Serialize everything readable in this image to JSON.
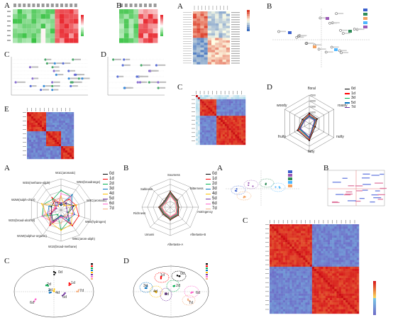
{
  "figure_labels": {
    "top_left": [
      "A",
      "B",
      "C",
      "D",
      "E"
    ],
    "top_right": [
      "A",
      "B",
      "C",
      "D"
    ],
    "bottom_left": [
      "A",
      "B",
      "C",
      "D"
    ],
    "bottom_right": [
      "A",
      "B",
      "C"
    ]
  },
  "colors": {
    "d0": "#000000",
    "d1": "#ff0000",
    "d2": "#00b050",
    "d3": "#0070c0",
    "d4": "#ffc000",
    "d5": "#7030a0",
    "d6": "#ff66cc",
    "d7": "#f4b183",
    "heat_green": "#2fbf3a",
    "heat_red": "#e8232a",
    "corr_red": "#d7191c",
    "corr_blue": "#7b73c9"
  },
  "chart_data": [
    {
      "type": "radar",
      "title": "",
      "axes": [
        "floral",
        "roasty",
        "nutty",
        "fatty",
        "fruity",
        "woody"
      ],
      "rlim": [
        0,
        2500
      ],
      "ticks": [
        "0",
        "500",
        "1000",
        "1500",
        "2000",
        "2500"
      ],
      "series": [
        {
          "name": "0d",
          "values": [
            900,
            800,
            600,
            1500,
            1200,
            700
          ]
        },
        {
          "name": "1d",
          "values": [
            800,
            700,
            500,
            1400,
            1100,
            600
          ]
        },
        {
          "name": "3d",
          "values": [
            700,
            650,
            450,
            1300,
            1000,
            550
          ]
        },
        {
          "name": "5d",
          "values": [
            650,
            600,
            400,
            1250,
            950,
            500
          ]
        },
        {
          "name": "7d",
          "values": [
            600,
            550,
            380,
            1200,
            900,
            480
          ]
        }
      ]
    },
    {
      "type": "radar",
      "title": "",
      "axes": [
        "W1C(aromatic)",
        "W5S(broadrange)",
        "W3C(aromatic)",
        "W6S(hydrogen)",
        "W5C(arom-aliph)",
        "W1S(broad-methane)",
        "W1W(sulphur-organic)",
        "W2S(broad-alcohol)",
        "W2W(sulph-chlor)",
        "W3S(methane-aliph)"
      ],
      "series": [
        {
          "name": "0d"
        },
        {
          "name": "1d"
        },
        {
          "name": "2d"
        },
        {
          "name": "3d"
        },
        {
          "name": "4d"
        },
        {
          "name": "5d"
        },
        {
          "name": "6d"
        },
        {
          "name": "7d"
        }
      ]
    },
    {
      "type": "radar",
      "title": "",
      "axes": [
        "Sourness",
        "Bitterness",
        "Astringency",
        "Aftertaste-B",
        "Aftertaste-A",
        "Umami",
        "Richness",
        "Saltiness"
      ],
      "ticks": [
        "-15",
        "-10",
        "-5",
        "0",
        "5",
        "10"
      ],
      "series": [
        {
          "name": "0d"
        },
        {
          "name": "1d"
        },
        {
          "name": "2d"
        },
        {
          "name": "3d"
        },
        {
          "name": "4d"
        },
        {
          "name": "5d"
        },
        {
          "name": "6d"
        },
        {
          "name": "7d"
        }
      ]
    },
    {
      "type": "scatter",
      "title": "",
      "points": [
        "0d",
        "1d",
        "2d",
        "3d",
        "4d",
        "5d",
        "6d",
        "7d"
      ]
    },
    {
      "type": "scatter",
      "title": "",
      "points": [
        "0d",
        "1d",
        "2d",
        "3d",
        "4d",
        "5d",
        "6d",
        "7d"
      ]
    }
  ]
}
